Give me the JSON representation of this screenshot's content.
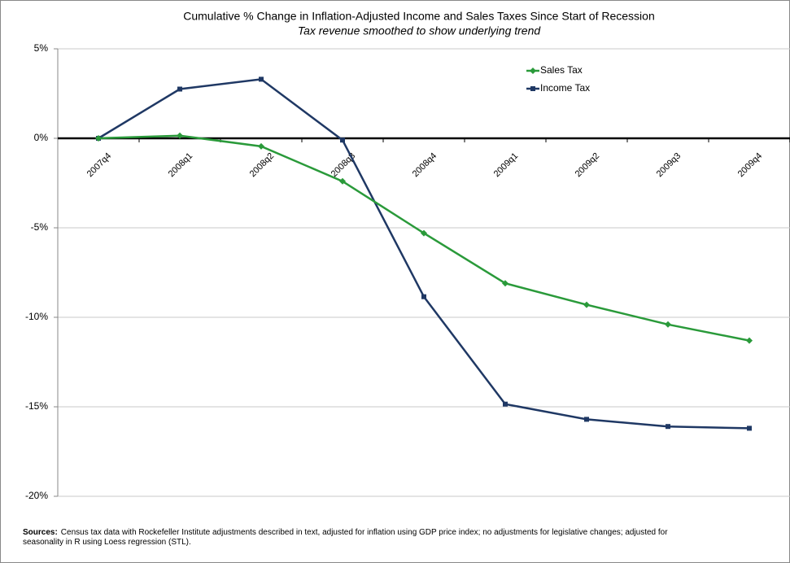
{
  "chart_data": {
    "type": "line",
    "title": "Cumulative % Change in Inflation-Adjusted Income and Sales Taxes Since Start of Recession",
    "subtitle": "Tax revenue smoothed to show underlying trend",
    "categories": [
      "2007q4",
      "2008q1",
      "2008q2",
      "2008q3",
      "2008q4",
      "2009q1",
      "2009q2",
      "2009q3",
      "2009q4"
    ],
    "series": [
      {
        "name": "Sales Tax",
        "color": "#2a9a3a",
        "marker": "diamond",
        "values": [
          0,
          0.15,
          -0.45,
          -2.4,
          -5.3,
          -8.1,
          -9.3,
          -10.4,
          -11.3
        ]
      },
      {
        "name": "Income Tax",
        "color": "#1f3864",
        "marker": "square",
        "values": [
          0,
          2.75,
          3.3,
          -0.1,
          -8.85,
          -14.85,
          -15.7,
          -16.1,
          -16.2
        ]
      }
    ],
    "ylim": [
      -20,
      5
    ],
    "yticks": [
      {
        "value": 5,
        "label": "5%"
      },
      {
        "value": 0,
        "label": "0%"
      },
      {
        "value": -5,
        "label": "-5%"
      },
      {
        "value": -10,
        "label": "-10%"
      },
      {
        "value": -15,
        "label": "-15%"
      },
      {
        "value": -20,
        "label": "-20%"
      }
    ],
    "grid": true,
    "legend": "upper right",
    "sources_label": "Sources:",
    "sources_text": "Census tax data with Rockefeller Institute adjustments described in text, adjusted for inflation using GDP price index; no adjustments for legislative changes; adjusted for seasonality in R using Loess regression (STL)."
  }
}
